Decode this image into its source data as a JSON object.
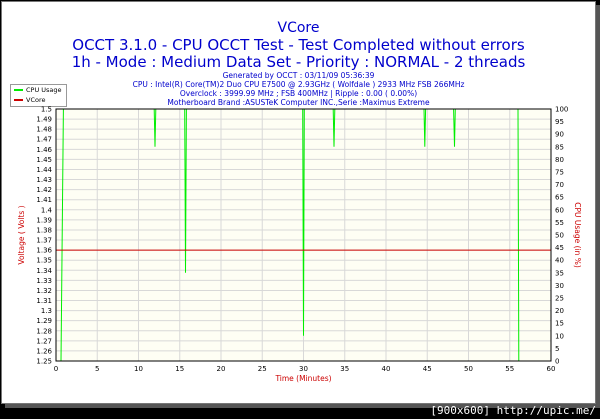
{
  "title_lines": [
    "VCore",
    "OCCT 3.1.0 - CPU OCCT Test - Test Completed without errors",
    "1h - Mode : Medium Data Set - Priority : NORMAL - 2 threads"
  ],
  "info_lines": [
    "Generated by OCCT : 03/11/09 05:36:39",
    "CPU : Intel(R) Core(TM)2 Duo CPU E7500 @ 2.93GHz ( Wolfdale ) 2933 MHz FSB 266MHz",
    "Overclock : 3999.99 MHz ; FSB 400MHz | Ripple : 0.00 ( 0.00%)",
    "Motherboard Brand :ASUSTeK Computer INC.,Serie :Maximus Extreme"
  ],
  "footer": "[900x600] http://upic.me/",
  "chart_data": {
    "type": "line",
    "xlabel": "Time (Minutes)",
    "ylabel": "Voltage ( Volts )",
    "y2label": "CPU Usage (in %)",
    "xlim": [
      0,
      60
    ],
    "ylim": [
      1.25,
      1.5
    ],
    "y2lim": [
      0,
      100
    ],
    "x_ticks": [
      0,
      5,
      10,
      15,
      20,
      25,
      30,
      35,
      40,
      45,
      50,
      55,
      60
    ],
    "y_ticks": [
      "1.25",
      "1.26",
      "1.27",
      "1.28",
      "1.29",
      "1.3",
      "1.31",
      "1.32",
      "1.33",
      "1.34",
      "1.35",
      "1.36",
      "1.37",
      "1.38",
      "1.39",
      "1.4",
      "1.41",
      "1.42",
      "1.43",
      "1.44",
      "1.45",
      "1.46",
      "1.47",
      "1.48",
      "1.49",
      "1.5"
    ],
    "y2_ticks": [
      "0",
      "5",
      "10",
      "15",
      "20",
      "25",
      "30",
      "35",
      "40",
      "45",
      "50",
      "55",
      "60",
      "65",
      "70",
      "75",
      "80",
      "85",
      "90",
      "95",
      "100"
    ],
    "grid": true,
    "legend_position": "top-left",
    "series": [
      {
        "name": "CPU Usage",
        "axis": "right",
        "color": "#00ee00",
        "points": [
          [
            0,
            0
          ],
          [
            0.6,
            0
          ],
          [
            0.9,
            100
          ],
          [
            11.9,
            100
          ],
          [
            12,
            85
          ],
          [
            12.1,
            100
          ],
          [
            15.6,
            100
          ],
          [
            15.7,
            35
          ],
          [
            15.8,
            100
          ],
          [
            29.9,
            100
          ],
          [
            30,
            10
          ],
          [
            30.1,
            100
          ],
          [
            33.6,
            100
          ],
          [
            33.7,
            85
          ],
          [
            33.8,
            100
          ],
          [
            44.6,
            100
          ],
          [
            44.7,
            85
          ],
          [
            44.8,
            100
          ],
          [
            48.2,
            100
          ],
          [
            48.3,
            85
          ],
          [
            48.4,
            100
          ],
          [
            56,
            100
          ],
          [
            56.1,
            0
          ],
          [
            56.3,
            0
          ]
        ]
      },
      {
        "name": "VCore",
        "axis": "left",
        "color": "#cc0000",
        "points": [
          [
            0,
            1.36
          ],
          [
            60,
            1.36
          ]
        ]
      }
    ]
  }
}
